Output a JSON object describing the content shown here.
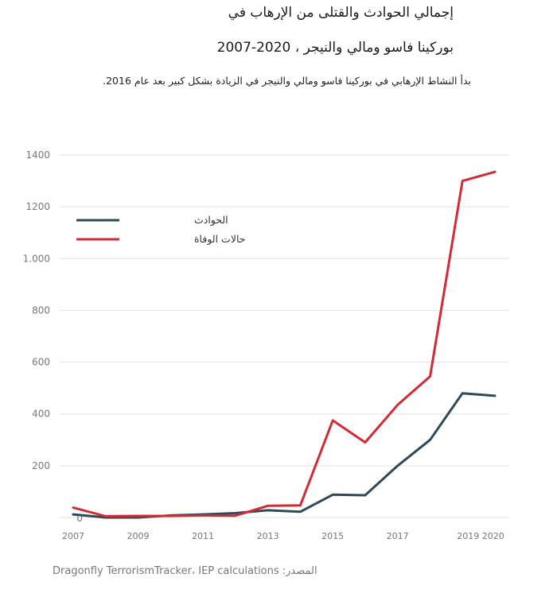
{
  "chart_data": {
    "type": "line",
    "title_line1": "إجمالي الحوادث والقتلى من الإرهاب في",
    "title_line2": "بوركينا فاسو ومالي والنيجر ، 2020-2007",
    "subtitle": "بدأ النشاط الإرهابي في بوركينا فاسو ومالي والنيجر في الزيادة بشكل كبير بعد عام 2016.",
    "source": "Dragonfly TerrorismTracker، IEP calculations :المصدر",
    "x": [
      2007,
      2008,
      2009,
      2010,
      2011,
      2012,
      2013,
      2014,
      2015,
      2016,
      2017,
      2018,
      2019,
      2020
    ],
    "xticks": [
      {
        "value": 2007,
        "label": "2007"
      },
      {
        "value": 2009,
        "label": "2009"
      },
      {
        "value": 2011,
        "label": "2011"
      },
      {
        "value": 2013,
        "label": "2013"
      },
      {
        "value": 2015,
        "label": "2015"
      },
      {
        "value": 2017,
        "label": "2017"
      },
      {
        "value": 2019,
        "label": "2019 2020"
      }
    ],
    "yticks": [
      {
        "value": 0,
        "label": "0"
      },
      {
        "value": 200,
        "label": "200"
      },
      {
        "value": 400,
        "label": "400"
      },
      {
        "value": 600,
        "label": "600"
      },
      {
        "value": 800,
        "label": "800"
      },
      {
        "value": 1000,
        "label": "1.000"
      },
      {
        "value": 1200,
        "label": "1200"
      },
      {
        "value": 1400,
        "label": "1400"
      }
    ],
    "ylim": [
      0,
      1400
    ],
    "xlim": [
      2007,
      2020
    ],
    "grid": true,
    "legend_position": "top-left",
    "series": [
      {
        "name": "الحوادث",
        "color": "#2f4a55",
        "values": [
          12,
          0,
          0,
          8,
          12,
          17,
          28,
          22,
          88,
          86,
          200,
          300,
          480,
          470
        ]
      },
      {
        "name": "حالات الوفاة",
        "color": "#d42a33",
        "values": [
          38,
          5,
          6,
          6,
          8,
          7,
          45,
          47,
          375,
          290,
          435,
          545,
          1300,
          1335
        ]
      }
    ]
  }
}
